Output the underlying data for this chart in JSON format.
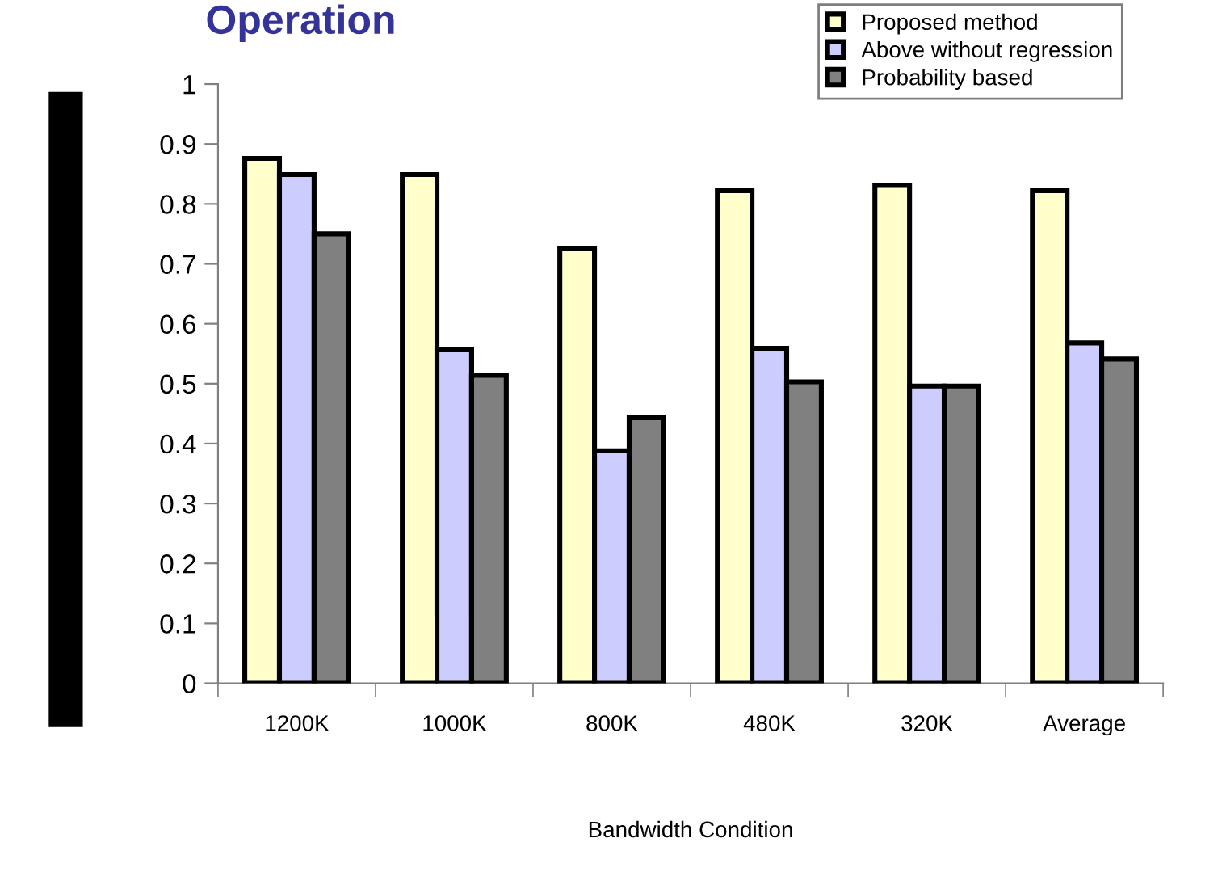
{
  "chart_data": {
    "type": "bar",
    "title": "Operation",
    "xlabel": "Bandwidth Condition",
    "categories": [
      "1200K",
      "1000K",
      "800K",
      "480K",
      "320K",
      "Average"
    ],
    "series": [
      {
        "name": "Proposed method",
        "color": "#ffffcc",
        "values": [
          0.876,
          0.849,
          0.725,
          0.822,
          0.831,
          0.822
        ]
      },
      {
        "name": "Above without regression",
        "color": "#ccccff",
        "values": [
          0.849,
          0.557,
          0.388,
          0.559,
          0.496,
          0.568
        ]
      },
      {
        "name": "Probability based",
        "color": "#808080",
        "values": [
          0.75,
          0.514,
          0.443,
          0.503,
          0.496,
          0.541
        ]
      }
    ],
    "ylim": [
      0,
      1
    ],
    "yticks": [
      0,
      0.1,
      0.2,
      0.3,
      0.4,
      0.5,
      0.6,
      0.7,
      0.8,
      0.9,
      1
    ],
    "grid": false,
    "legend": "top right"
  }
}
